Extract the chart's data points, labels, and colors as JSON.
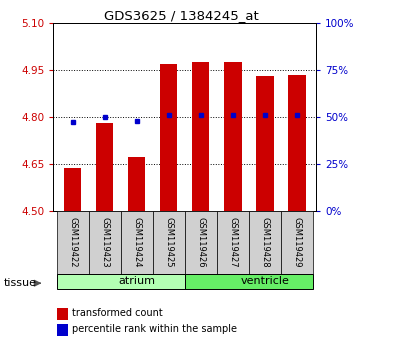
{
  "title": "GDS3625 / 1384245_at",
  "samples": [
    "GSM119422",
    "GSM119423",
    "GSM119424",
    "GSM119425",
    "GSM119426",
    "GSM119427",
    "GSM119428",
    "GSM119429"
  ],
  "red_values": [
    4.635,
    4.78,
    4.67,
    4.97,
    4.975,
    4.975,
    4.93,
    4.935
  ],
  "blue_percentiles": [
    47,
    50,
    48,
    51,
    51,
    51,
    51,
    51
  ],
  "baseline": 4.5,
  "ylim_left": [
    4.5,
    5.1
  ],
  "ylim_right": [
    0,
    100
  ],
  "yticks_left": [
    4.5,
    4.65,
    4.8,
    4.95,
    5.1
  ],
  "yticks_right": [
    0,
    25,
    50,
    75,
    100
  ],
  "grid_yticks": [
    4.65,
    4.8,
    4.95
  ],
  "groups": [
    {
      "label": "atrium",
      "start": 0,
      "end": 4,
      "color": "#b3ffb3"
    },
    {
      "label": "ventricle",
      "start": 4,
      "end": 8,
      "color": "#66ee66"
    }
  ],
  "bar_color": "#cc0000",
  "blue_color": "#0000cc",
  "bar_width": 0.55,
  "tissue_label": "tissue",
  "legend_items": [
    {
      "color": "#cc0000",
      "label": "transformed count"
    },
    {
      "color": "#0000cc",
      "label": "percentile rank within the sample"
    }
  ],
  "bg_color": "#ffffff",
  "left_tick_color": "#cc0000",
  "right_tick_color": "#0000cc",
  "sample_box_color": "#d0d0d0",
  "n_samples": 8
}
